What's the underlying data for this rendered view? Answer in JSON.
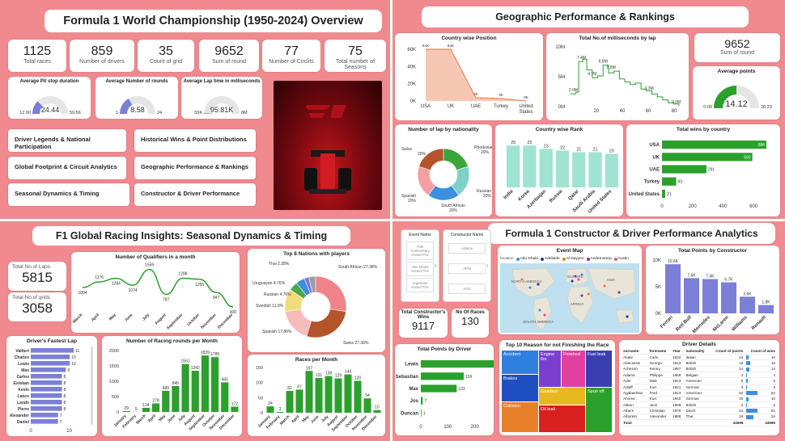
{
  "q1": {
    "title": "Formula 1 World Championship (1950-2024) Overview",
    "kpis": [
      {
        "value": "1125",
        "label": "Total races"
      },
      {
        "value": "859",
        "label": "Number of drivers"
      },
      {
        "value": "35",
        "label": "Count of grid"
      },
      {
        "value": "9652",
        "label": "Sum of round"
      },
      {
        "value": "77",
        "label": "Number of Circlits"
      },
      {
        "value": "75",
        "label": "Total number of Seasons"
      }
    ],
    "gauges": [
      {
        "title": "Average Pit stop duration",
        "value": "24.44",
        "min": "12.90",
        "max": "59.56",
        "fraction": 0.25
      },
      {
        "title": "Average Number of rounds",
        "value": "8.58",
        "min": "1",
        "max": "24",
        "fraction": 0.33
      },
      {
        "title": "Average Lap time in milliseconds",
        "value": "95.81K",
        "min": "55K",
        "max": "8M",
        "fraction": 0.01
      }
    ],
    "buttons": [
      "Driver Legends & National Participation",
      "Historical Wins & Point Distributions",
      "Global Footprint & Circuit Analytics",
      "Geographic Performance & Rankings",
      "Seasonal Dynamics & Timing",
      "Constructor & Driver Performance"
    ]
  },
  "q2": {
    "title": "Geographic Performance & Rankings",
    "kpi": {
      "value": "9652",
      "label": "Sum of round"
    },
    "gauge": {
      "title": "Average points",
      "value": "14.12",
      "min": "0.00",
      "max": "28.23",
      "fraction": 0.5
    },
    "position": {
      "title": "Country wise Position",
      "categories": [
        "USA",
        "UK",
        "UAE",
        "Turkey",
        "United States"
      ],
      "values": [
        64,
        64,
        4,
        3,
        0
      ],
      "labels": [
        "64K",
        "64K",
        "4K",
        "3K",
        "0K"
      ],
      "yticks": [
        "60K",
        "40K",
        "20K",
        "0K"
      ]
    },
    "laptime": {
      "title": "Total No.of milliseconds by lap",
      "labels": [
        "7.4M",
        "6.8M",
        "5.8M",
        "4.7M",
        "2.0M",
        "2.3M",
        "0.0M"
      ],
      "xticks": [
        "20",
        "40",
        "60",
        "80"
      ],
      "yticks": [
        "10M",
        "5M",
        "0M"
      ]
    },
    "donut": {
      "title": "Number of lap by nationality",
      "slices": [
        {
          "name": "Rhodesian",
          "pct": "20%",
          "value": 20,
          "color": "#3aa53a"
        },
        {
          "name": "Russian",
          "pct": "20%",
          "value": 20,
          "color": "#7fd0c8"
        },
        {
          "name": "South African",
          "pct": "20%",
          "value": 20,
          "color": "#3a8fe0"
        },
        {
          "name": "Spanish",
          "pct": "20%",
          "value": 20,
          "color": "#f4a0a0"
        },
        {
          "name": "Swiss",
          "pct": "20%",
          "value": 20,
          "color": "#b5532b"
        }
      ]
    },
    "rank": {
      "title": "Country wise Rank",
      "categories": [
        "India",
        "Korea",
        "Azerbaijan",
        "Russia",
        "Qatar",
        "Saudi Arabia",
        "United States"
      ],
      "values": [
        25,
        25,
        23,
        22,
        21,
        21,
        20
      ]
    },
    "wins": {
      "title": "Total wins by country",
      "categories": [
        "USA",
        "UK",
        "UAE",
        "Turkey",
        "United States"
      ],
      "values": [
        684,
        592,
        291,
        93,
        21
      ],
      "xticks": [
        "0",
        "200",
        "400",
        "600"
      ]
    }
  },
  "q3": {
    "title": "F1 Global Racing Insights: Seasonal Dynamics & Timing",
    "kpis": [
      {
        "label": "Total No.of Laps",
        "value": "5815"
      },
      {
        "label": "Total No.of grids",
        "value": "3058"
      }
    ],
    "qualifiers": {
      "title": "Number of Qualifiers in a month",
      "months": [
        "March",
        "April",
        "May",
        "June",
        "July",
        "August",
        "September",
        "October",
        "November",
        "December"
      ],
      "values": [
        1004,
        1176,
        1284,
        1074,
        1559,
        787,
        1288,
        1255,
        847,
        400
      ],
      "labels": [
        "1004",
        "1176",
        "1284",
        "1074",
        "1559",
        "787",
        "1288",
        "1255",
        "847",
        "400"
      ]
    },
    "nations": {
      "title": "Top 8 Nations with players",
      "slices": [
        {
          "name": "South African 27.38%",
          "value": 27.38,
          "color": "#f0828a"
        },
        {
          "name": "Swiss 27.38%",
          "value": 27.38,
          "color": "#b5532b"
        },
        {
          "name": "Spanish 17.86%",
          "value": 17.86,
          "color": "#f6bcbc"
        },
        {
          "name": "Swedish 11.9%",
          "value": 11.9,
          "color": "#f1dc7a"
        },
        {
          "name": "Russian 4.76%",
          "value": 4.76,
          "color": "#4aa84a"
        },
        {
          "name": "Uruguayan 4.76%",
          "value": 4.76,
          "color": "#3a8fe0"
        },
        {
          "name": "Thai 2.38%",
          "value": 2.38,
          "color": "#8a6fd8"
        },
        {
          "name": "",
          "value": 3.58,
          "color": "#9aa0a6"
        }
      ]
    },
    "fastest": {
      "title": "Driver's Fastest Lap",
      "names": [
        "Valtteri",
        "Charles",
        "Lewis",
        "Max",
        "Carlos",
        "Esteban",
        "Kevin",
        "Lance",
        "Lando",
        "Pierre",
        "Alexander",
        "Daniel"
      ],
      "values": [
        11,
        10,
        10,
        9,
        8,
        8,
        8,
        8,
        8,
        8,
        7,
        7
      ],
      "xticks": [
        "0",
        "10"
      ]
    },
    "rounds": {
      "title": "Number of Racing rounds per Month",
      "months": [
        "January",
        "February",
        "March",
        "April",
        "May",
        "June",
        "July",
        "August",
        "September",
        "October",
        "November",
        "December"
      ],
      "values": [
        29,
        5,
        134,
        278,
        689,
        845,
        1561,
        1342,
        1839,
        1785,
        965,
        172
      ],
      "yticks": [
        "2000",
        "1500",
        "1000",
        "500",
        "0"
      ]
    },
    "races": {
      "title": "Races per Month",
      "months": [
        "January",
        "February",
        "March",
        "April",
        "May",
        "June",
        "July",
        "August",
        "September",
        "October",
        "November",
        "December"
      ],
      "values": [
        24,
        3,
        82,
        87,
        157,
        131,
        138,
        129,
        144,
        120,
        54,
        10
      ],
      "yticks": [
        "150",
        "100",
        "50",
        "0"
      ]
    }
  },
  "q4": {
    "title": "Formula 1 Constructor & Driver Performance Analytics",
    "event_slicer": {
      "title": "Event Name",
      "items": [
        "70th Anniversary Grand Prix",
        "Abu Dhabi Grand Prix",
        "Argentine Grand Prix"
      ]
    },
    "constructor_slicer": {
      "title": "Constructor Name",
      "items": [
        "Adams",
        "AFM",
        "AGS"
      ]
    },
    "kpis": [
      {
        "label": "Total Constructor's Wins",
        "value": "9117"
      },
      {
        "label": "No Of Races",
        "value": "130"
      }
    ],
    "map": {
      "title": "Event Map",
      "legend_label": "location",
      "legend": [
        "Abu Dhabi",
        "Adelaide",
        "Al Dayyen",
        "Andernstorp",
        "Austin"
      ],
      "legend_colors": [
        "#3a8fe0",
        "#1f3a93",
        "#e08030",
        "#7a3fa0",
        "#e05090"
      ],
      "regions": [
        "NORTH AMERICA",
        "EUROPE",
        "ASIA",
        "AFRICA",
        "SOUTH AMERICA"
      ]
    },
    "constructors": {
      "title": "Total Points by Constructor",
      "names": [
        "Ferrari",
        "Red Bull",
        "Mercedes",
        "McLaren",
        "Williams",
        "Renault"
      ],
      "values": [
        10.6,
        7.6,
        7.4,
        6.7,
        3.6,
        1.8
      ],
      "labels": [
        "10.6K",
        "7.6K",
        "7.4K",
        "6.7K",
        "3.6K",
        "1.8K"
      ],
      "yticks": [
        "10K",
        "5K",
        "0K"
      ]
    },
    "drivers": {
      "title": "Total Points by Driver",
      "names": [
        "Lewis",
        "Sebastian",
        "Max",
        "Jos",
        "Duncan"
      ],
      "values": [
        291,
        159,
        133,
        7,
        1
      ],
      "xticks": [
        "0",
        "100",
        "200"
      ]
    },
    "treemap": {
      "title": "Top 10 Reason for not Finishing the Race",
      "cells": [
        "Accident",
        "Engine fire",
        "Finished",
        "Fuel leak",
        "Brakes",
        "Gearbox",
        "Spun off",
        "Collision",
        "Oil leak",
        ""
      ]
    },
    "details": {
      "title": "Driver Details",
      "columns": [
        "surname",
        "forename",
        "Year",
        "nationality",
        "Count of points",
        "Count of wins"
      ],
      "rows": [
        [
          "Abate",
          "Carlo",
          "1932",
          "Italian",
          "10",
          "10"
        ],
        [
          "Abecassis",
          "George",
          "1913",
          "British",
          "16",
          "16"
        ],
        [
          "Acheson",
          "Kenny",
          "1957",
          "British",
          "14",
          "14"
        ],
        [
          "Adams",
          "Philippe",
          "1969",
          "Belgian",
          "4",
          "4"
        ],
        [
          "Ader",
          "Walt",
          "1913",
          "American",
          "5",
          "5"
        ],
        [
          "Adolff",
          "Kurt",
          "1921",
          "German",
          "3",
          "3"
        ],
        [
          "Agabashian",
          "Fred",
          "1913",
          "American",
          "52",
          "52"
        ],
        [
          "Ahrens",
          "Kurt",
          "1940",
          "German",
          "10",
          "10"
        ],
        [
          "Aitken",
          "Jack",
          "1995",
          "British",
          "2",
          "2"
        ],
        [
          "Albers",
          "Christijan",
          "1979",
          "Dutch",
          "51",
          "51"
        ],
        [
          "Alboreto",
          "Alexander",
          "1986",
          "Thai",
          "34",
          "34"
        ]
      ],
      "total": {
        "label": "Total",
        "points": "34595",
        "wins": "34595"
      }
    }
  }
}
